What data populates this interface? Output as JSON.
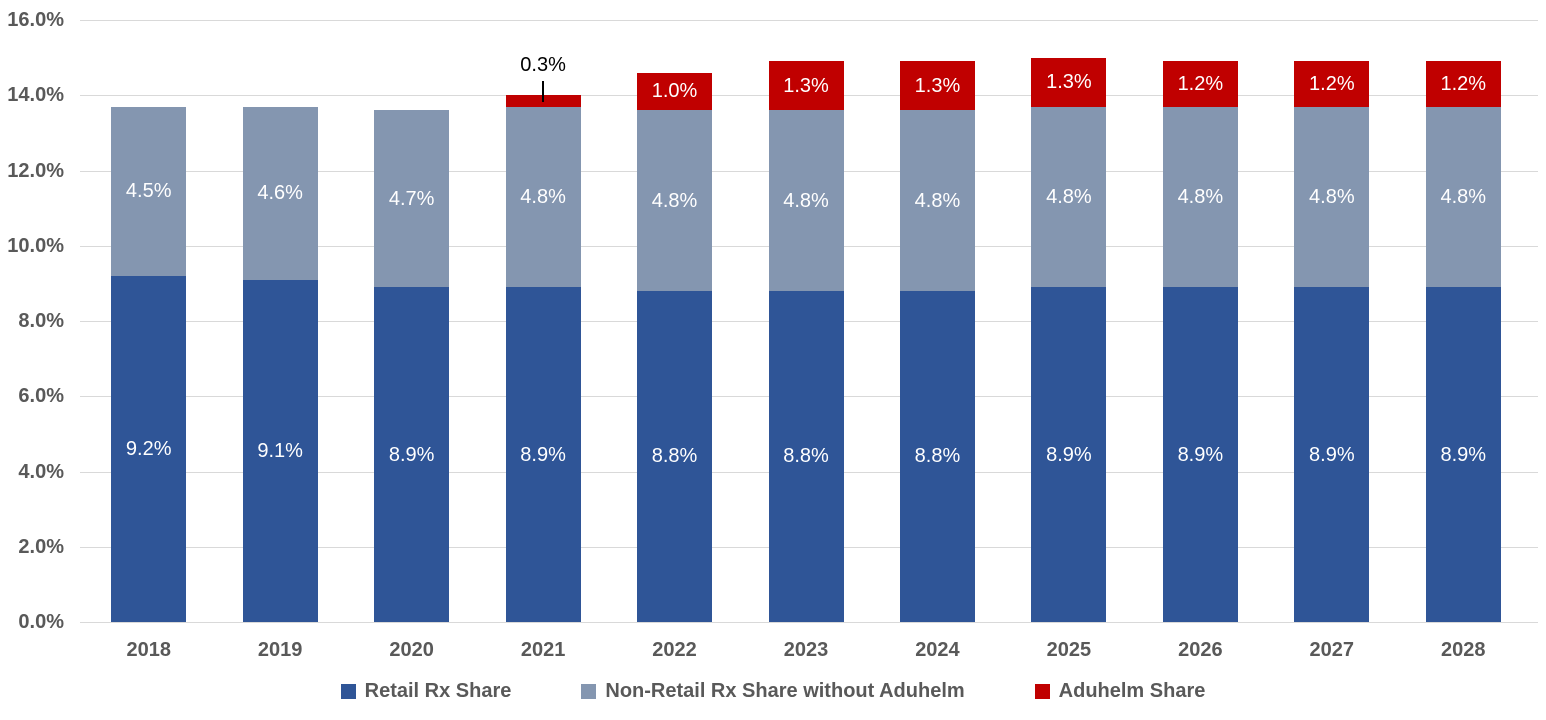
{
  "chart_data": {
    "type": "bar",
    "stacked": true,
    "title": "",
    "categories": [
      "2018",
      "2019",
      "2020",
      "2021",
      "2022",
      "2023",
      "2024",
      "2025",
      "2026",
      "2027",
      "2028"
    ],
    "series": [
      {
        "name": "Retail Rx Share",
        "color": "#2F5597",
        "values": [
          9.2,
          9.1,
          8.9,
          8.9,
          8.8,
          8.8,
          8.8,
          8.9,
          8.9,
          8.9,
          8.9
        ]
      },
      {
        "name": "Non-Retail Rx Share without Aduhelm",
        "color": "#8496B0",
        "values": [
          4.5,
          4.6,
          4.7,
          4.8,
          4.8,
          4.8,
          4.8,
          4.8,
          4.8,
          4.8,
          4.8
        ]
      },
      {
        "name": "Aduhelm Share",
        "color": "#C00000",
        "values": [
          null,
          null,
          null,
          0.3,
          1.0,
          1.3,
          1.3,
          1.3,
          1.2,
          1.2,
          1.2
        ]
      }
    ],
    "data_label_suffix": "%",
    "y_axis": {
      "min": 0,
      "max": 16,
      "step": 2,
      "tick_labels": [
        "0.0%",
        "2.0%",
        "4.0%",
        "6.0%",
        "8.0%",
        "10.0%",
        "12.0%",
        "14.0%",
        "16.0%"
      ]
    },
    "xlabel": "",
    "ylabel": "",
    "grid": "horizontal",
    "legend_position": "bottom",
    "annotations": [
      {
        "text": "0.3%",
        "category": "2021",
        "series": "Aduhelm Share",
        "placement": "outside-above-with-leader-line"
      }
    ]
  },
  "styles": {
    "background": "#FFFFFF",
    "axis_text_color": "#595959",
    "gridline_color": "#D9D9D9",
    "inside_label_color": "#FFFFFF",
    "outside_label_color": "#000000"
  }
}
